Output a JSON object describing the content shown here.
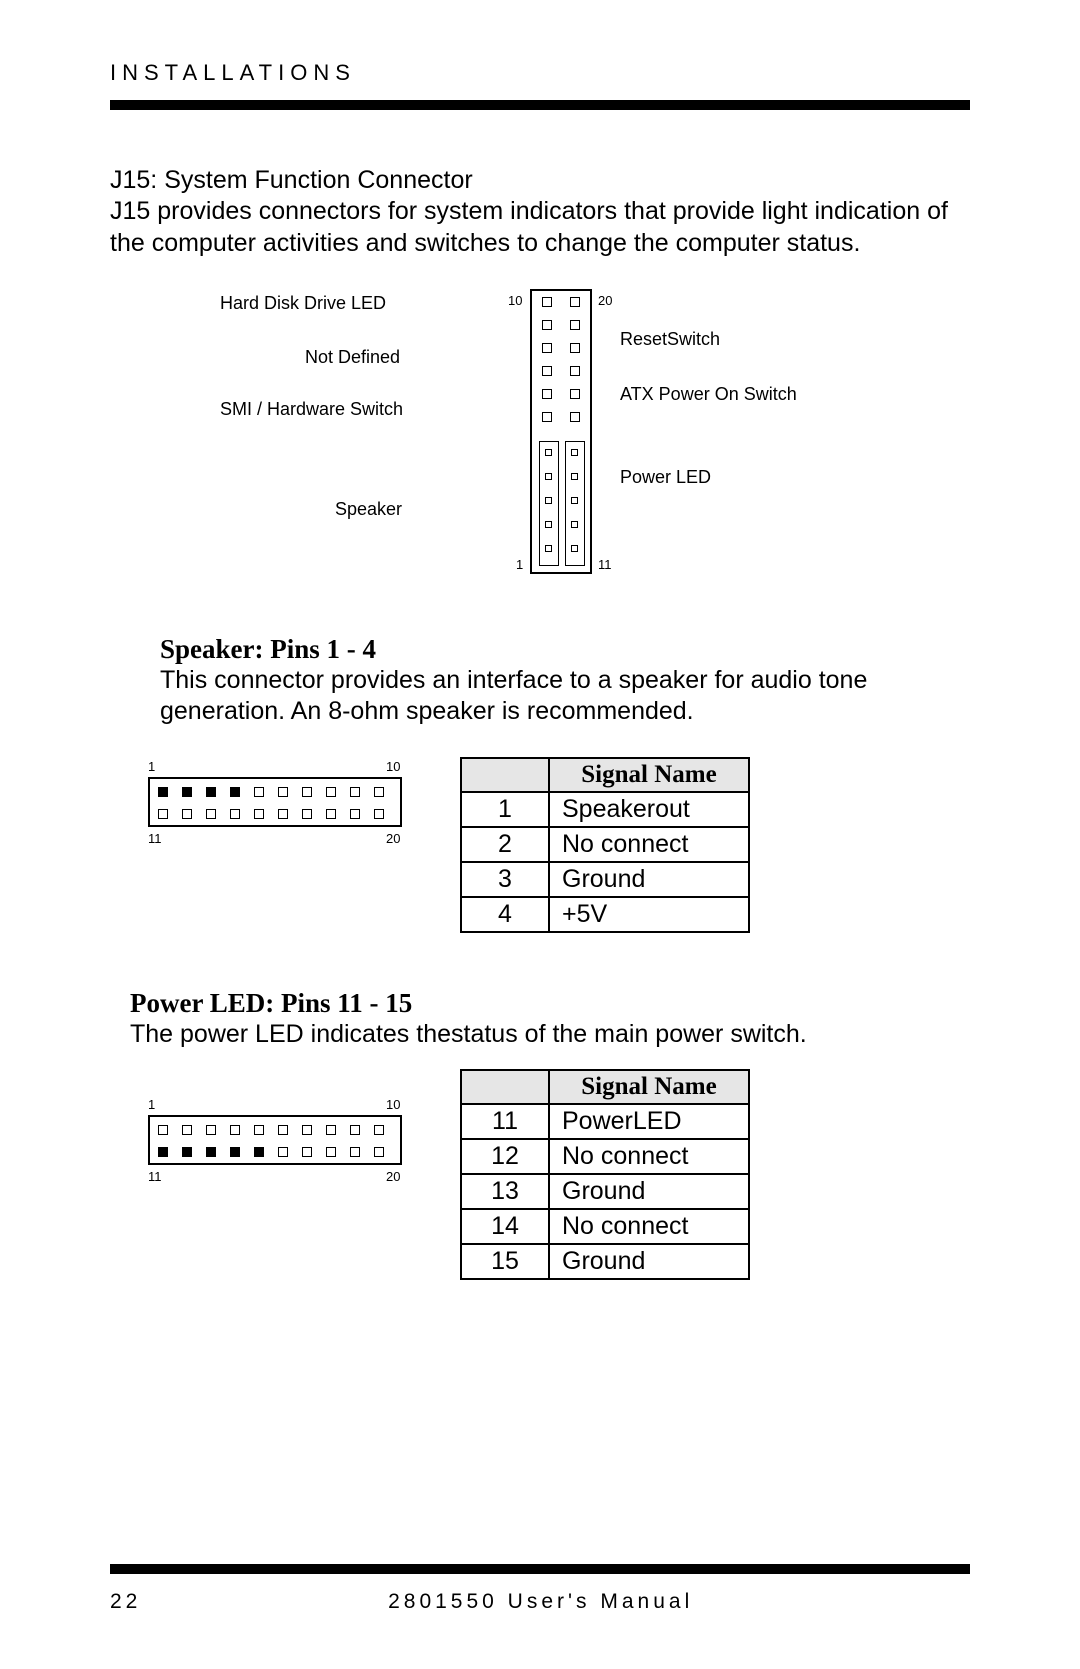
{
  "header": "INSTALLATIONS",
  "intro_title": "J15: System Function Connector",
  "intro_body": "J15 provides connectors for system indicators that provide light indication of the computer activities and switches to change the computer status.",
  "diag": {
    "left_labels": {
      "hdd": "Hard Disk Drive LED",
      "notdef": "Not Defined",
      "smi": "SMI / Hardware Switch",
      "spk": "Speaker"
    },
    "right_labels": {
      "reset": "ResetSwitch",
      "atx": "ATX Power On Switch",
      "pled": "Power LED"
    },
    "corner_nums": {
      "tl": "10",
      "tr": "20",
      "bl": "1",
      "br": "11"
    }
  },
  "speaker": {
    "title": "Speaker: Pins 1 - 4",
    "body": "This connector provides an interface to a speaker for audio tone generation. An 8-ohm speaker is recommended.",
    "table_header": "Signal Name",
    "rows": [
      {
        "pin": "1",
        "name": "Speakerout"
      },
      {
        "pin": "2",
        "name": "No connect"
      },
      {
        "pin": "3",
        "name": "Ground"
      },
      {
        "pin": "4",
        "name": "+5V"
      }
    ],
    "diag_nums": {
      "tl": "1",
      "tr": "10",
      "bl": "11",
      "br": "20"
    },
    "filled_top": [
      0,
      1,
      2,
      3
    ]
  },
  "powerled": {
    "title": "Power LED: Pins 11 - 15",
    "body_a": "The power LED indicates the",
    "body_b": "status of the main power switch.",
    "table_header": "Signal Name",
    "rows": [
      {
        "pin": "11",
        "name": "PowerLED"
      },
      {
        "pin": "12",
        "name": "No connect"
      },
      {
        "pin": "13",
        "name": "Ground"
      },
      {
        "pin": "14",
        "name": "No connect"
      },
      {
        "pin": "15",
        "name": "Ground"
      }
    ],
    "diag_nums": {
      "tl": "1",
      "tr": "10",
      "bl": "11",
      "br": "20"
    },
    "filled_bottom": [
      0,
      1,
      2,
      3,
      4
    ]
  },
  "footer": {
    "page": "22",
    "title": "2801550 User's Manual"
  }
}
